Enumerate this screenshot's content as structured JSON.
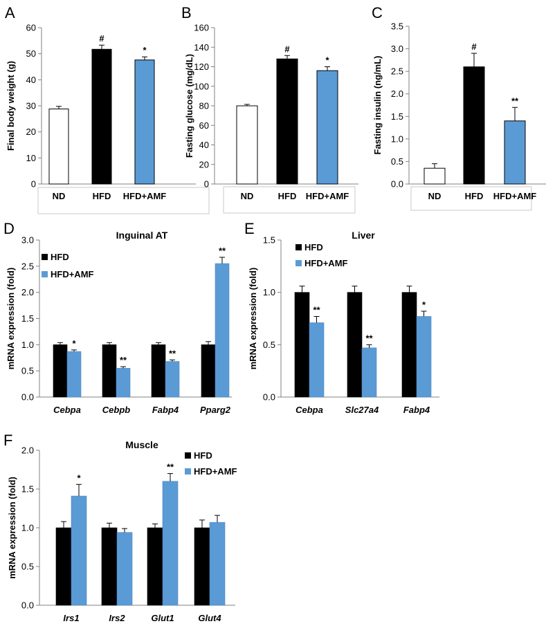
{
  "colors": {
    "hfd": "#000000",
    "amf": "#5B9BD5",
    "nd": "#ffffff",
    "axis": "#808080"
  },
  "chart_data": [
    {
      "panel": "A",
      "type": "bar",
      "title": "",
      "ylabel": "Final body weight (g)",
      "xlabel": "",
      "ylim": [
        0,
        60
      ],
      "yticks": [
        "0",
        "10",
        "20",
        "30",
        "40",
        "50",
        "60"
      ],
      "categories": [
        "ND",
        "HFD",
        "HFD+AMF"
      ],
      "italic_categories": false,
      "boxed_categories": true,
      "series": [
        {
          "color_key": "groups",
          "values": [
            28.8,
            51.7,
            47.6
          ],
          "errors": [
            1.0,
            1.6,
            1.2
          ],
          "colors": [
            "#ffffff",
            "#000000",
            "#5B9BD5"
          ],
          "sig": [
            "",
            "#",
            "*"
          ]
        }
      ]
    },
    {
      "panel": "B",
      "type": "bar",
      "title": "",
      "ylabel": "Fasting glucose (mg/dL)",
      "xlabel": "",
      "ylim": [
        0,
        160
      ],
      "yticks": [
        "0",
        "20",
        "40",
        "60",
        "80",
        "100",
        "120",
        "140",
        "160"
      ],
      "categories": [
        "ND",
        "HFD",
        "HFD+AMF"
      ],
      "italic_categories": false,
      "boxed_categories": true,
      "series": [
        {
          "color_key": "groups",
          "values": [
            80,
            128,
            116
          ],
          "errors": [
            1.5,
            3.5,
            4
          ],
          "colors": [
            "#ffffff",
            "#000000",
            "#5B9BD5"
          ],
          "sig": [
            "",
            "#",
            "*"
          ]
        }
      ]
    },
    {
      "panel": "C",
      "type": "bar",
      "title": "",
      "ylabel": "Fasting insulin (ng/mL)",
      "xlabel": "",
      "ylim": [
        0,
        3.5
      ],
      "yticks": [
        "0.0",
        "0.5",
        "1.0",
        "1.5",
        "2.0",
        "2.5",
        "3.0",
        "3.5"
      ],
      "categories": [
        "ND",
        "HFD",
        "HFD+AMF"
      ],
      "italic_categories": false,
      "boxed_categories": true,
      "series": [
        {
          "color_key": "groups",
          "values": [
            0.35,
            2.6,
            1.4
          ],
          "errors": [
            0.1,
            0.3,
            0.3
          ],
          "colors": [
            "#ffffff",
            "#000000",
            "#5B9BD5"
          ],
          "sig": [
            "",
            "#",
            "**"
          ]
        }
      ]
    },
    {
      "panel": "D",
      "type": "bar",
      "title": "Inguinal AT",
      "ylabel": "mRNA expression (fold)",
      "xlabel": "",
      "ylim": [
        0,
        3.0
      ],
      "yticks": [
        "0.0",
        "0.5",
        "1.0",
        "1.5",
        "2.0",
        "2.5",
        "3.0"
      ],
      "categories": [
        "Cebpa",
        "Cebpb",
        "Fabp4",
        "Pparg2"
      ],
      "italic_categories": true,
      "boxed_categories": false,
      "legend": [
        "HFD",
        "HFD+AMF"
      ],
      "series": [
        {
          "name": "HFD",
          "values": [
            1.0,
            1.0,
            1.0,
            1.0
          ],
          "errors": [
            0.04,
            0.04,
            0.04,
            0.06
          ],
          "sig": [
            "",
            "",
            "",
            ""
          ]
        },
        {
          "name": "HFD+AMF",
          "values": [
            0.87,
            0.55,
            0.68,
            2.55
          ],
          "errors": [
            0.03,
            0.03,
            0.03,
            0.12
          ],
          "sig": [
            "*",
            "**",
            "**",
            "**"
          ]
        }
      ]
    },
    {
      "panel": "E",
      "type": "bar",
      "title": "Liver",
      "ylabel": "mRNA expression (fold)",
      "xlabel": "",
      "ylim": [
        0,
        1.5
      ],
      "yticks": [
        "0.0",
        "0.5",
        "1.0",
        "1.5"
      ],
      "categories": [
        "Cebpa",
        "Slc27a4",
        "Fabp4"
      ],
      "italic_categories": true,
      "boxed_categories": false,
      "legend": [
        "HFD",
        "HFD+AMF"
      ],
      "series": [
        {
          "name": "HFD",
          "values": [
            1.0,
            1.0,
            1.0
          ],
          "errors": [
            0.06,
            0.06,
            0.06
          ],
          "sig": [
            "",
            "",
            ""
          ]
        },
        {
          "name": "HFD+AMF",
          "values": [
            0.71,
            0.47,
            0.77
          ],
          "errors": [
            0.06,
            0.03,
            0.05
          ],
          "sig": [
            "**",
            "**",
            "*"
          ]
        }
      ]
    },
    {
      "panel": "F",
      "type": "bar",
      "title": "Muscle",
      "ylabel": "mRNA expression (fold)",
      "xlabel": "",
      "ylim": [
        0,
        2.0
      ],
      "yticks": [
        "0.0",
        "0.5",
        "1.0",
        "1.5",
        "2.0"
      ],
      "categories": [
        "Irs1",
        "Irs2",
        "Glut1",
        "Glut4"
      ],
      "italic_categories": true,
      "boxed_categories": false,
      "legend": [
        "HFD",
        "HFD+AMF"
      ],
      "series": [
        {
          "name": "HFD",
          "values": [
            1.0,
            1.0,
            1.0,
            1.0
          ],
          "errors": [
            0.08,
            0.06,
            0.05,
            0.1
          ],
          "sig": [
            "",
            "",
            "",
            ""
          ]
        },
        {
          "name": "HFD+AMF",
          "values": [
            1.41,
            0.94,
            1.6,
            1.07
          ],
          "errors": [
            0.15,
            0.05,
            0.1,
            0.09
          ],
          "sig": [
            "*",
            "",
            "**",
            ""
          ]
        }
      ]
    }
  ]
}
